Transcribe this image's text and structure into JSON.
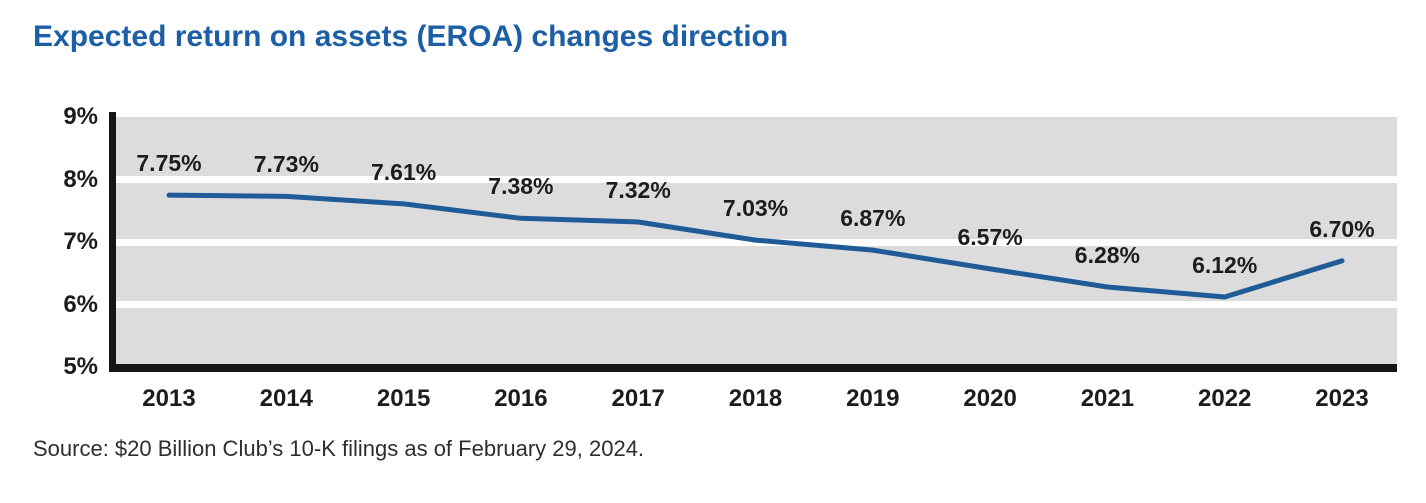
{
  "title": "Expected return on assets (EROA) changes direction",
  "source_note": "Source: $20 Billion Club’s 10-K filings as of February 29, 2024.",
  "colors": {
    "title": "#1d5fa6",
    "line": "#1f5c97",
    "plot_background": "#dcdcdd",
    "gridline": "#ffffff",
    "axis": "#161616",
    "tick_label": "#1c1c1c",
    "point_label": "#1c1c1c",
    "source_text": "#2e2e2e",
    "page_background": "#ffffff"
  },
  "chart_data": {
    "type": "line",
    "title": "Expected return on assets (EROA) changes direction",
    "categories": [
      "2013",
      "2014",
      "2015",
      "2016",
      "2017",
      "2018",
      "2019",
      "2020",
      "2021",
      "2022",
      "2023"
    ],
    "values": [
      7.75,
      7.73,
      7.61,
      7.38,
      7.32,
      7.03,
      6.87,
      6.57,
      6.28,
      6.12,
      6.7
    ],
    "point_labels": [
      "7.75%",
      "7.73%",
      "7.61%",
      "7.38%",
      "7.32%",
      "7.03%",
      "6.87%",
      "6.57%",
      "6.28%",
      "6.12%",
      "6.70%"
    ],
    "xlabel": "",
    "ylabel": "",
    "ylim": [
      5,
      9
    ],
    "yticks": [
      {
        "value": 9,
        "label": "9%"
      },
      {
        "value": 8,
        "label": "8%"
      },
      {
        "value": 7,
        "label": "7%"
      },
      {
        "value": 6,
        "label": "6%"
      },
      {
        "value": 5,
        "label": "5%"
      }
    ],
    "gridline_values": [
      8,
      7,
      6
    ],
    "grid": true,
    "legend": false
  }
}
